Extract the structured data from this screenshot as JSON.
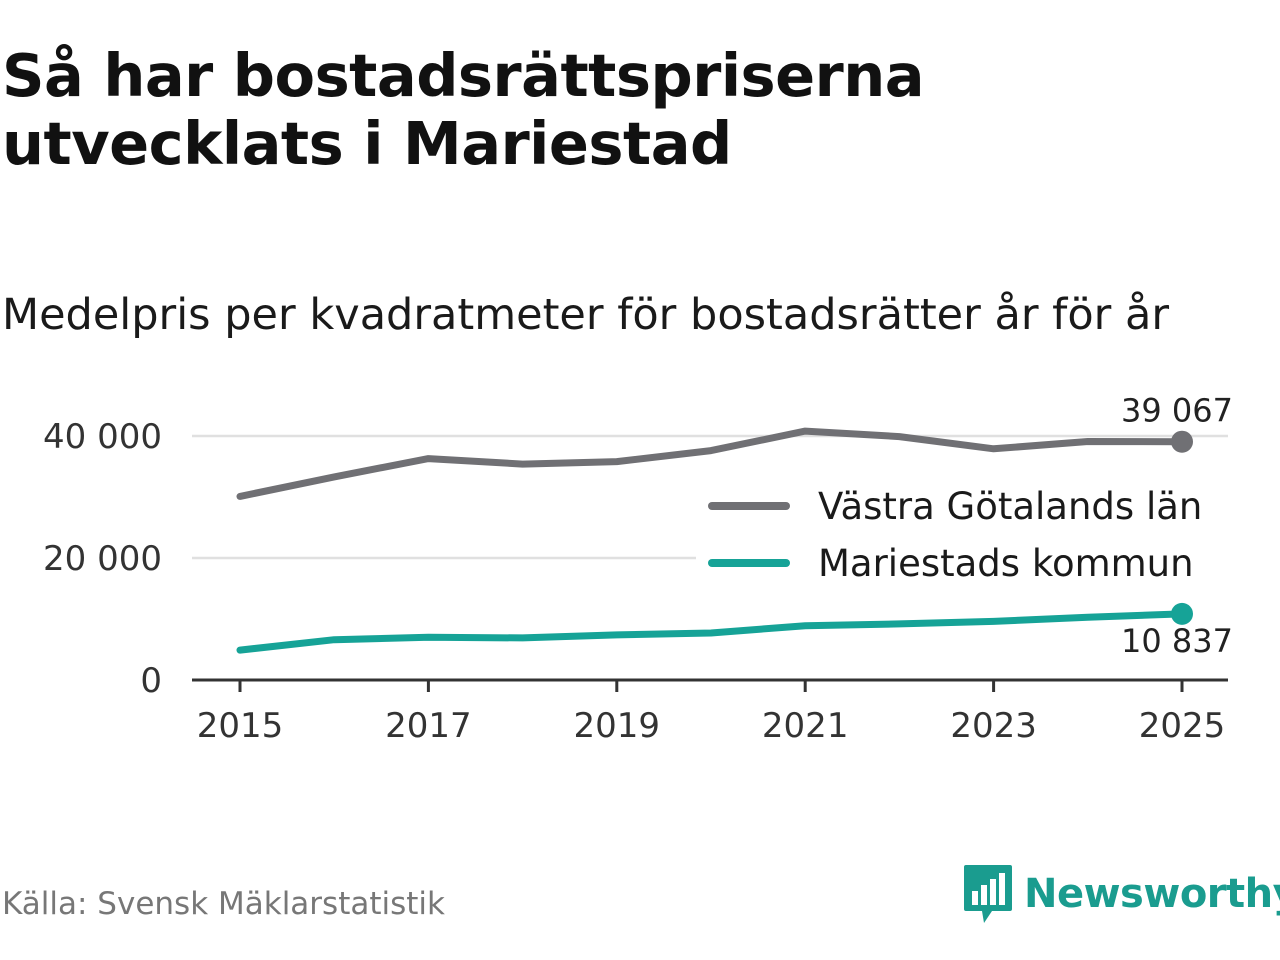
{
  "title": "Så har bostadsrättspriserna utvecklats i Mariestad",
  "subtitle": "Medelpris per kvadratmeter för bostadsrätter år för år",
  "source": "Källa: Svensk Mäklarstatistik",
  "brand": {
    "name": "Newsworthy",
    "icon": "newsworthy-logo-icon"
  },
  "colors": {
    "gray_series": "#707074",
    "teal_series": "#16a397",
    "brand": "#1a9c8f",
    "grid": "#e0e0e0",
    "axis": "#333333"
  },
  "chart_data": {
    "type": "line",
    "x": [
      2015,
      2016,
      2017,
      2018,
      2019,
      2020,
      2021,
      2022,
      2023,
      2024,
      2025
    ],
    "x_ticks": [
      2015,
      2017,
      2019,
      2021,
      2023,
      2025
    ],
    "x_tick_labels": [
      "2015",
      "2017",
      "2019",
      "2021",
      "2023",
      "2025"
    ],
    "y_ticks": [
      0,
      20000,
      40000
    ],
    "y_tick_labels": [
      "0",
      "20 000",
      "40 000"
    ],
    "ylim": [
      0,
      41000
    ],
    "xlim": [
      2014.5,
      2025.5
    ],
    "grid": true,
    "legend_position": "right",
    "series": [
      {
        "name": "Västra Götalands län",
        "color": "#707074",
        "values": [
          30100,
          33300,
          36300,
          35400,
          35800,
          37600,
          40800,
          39900,
          37900,
          39100,
          39067
        ],
        "end_label": "39 067",
        "end_label_position": "above"
      },
      {
        "name": "Mariestads kommun",
        "color": "#16a397",
        "values": [
          4900,
          6600,
          7000,
          6900,
          7400,
          7700,
          8900,
          9200,
          9600,
          10300,
          10837
        ],
        "end_label": "10 837",
        "end_label_position": "below"
      }
    ]
  }
}
